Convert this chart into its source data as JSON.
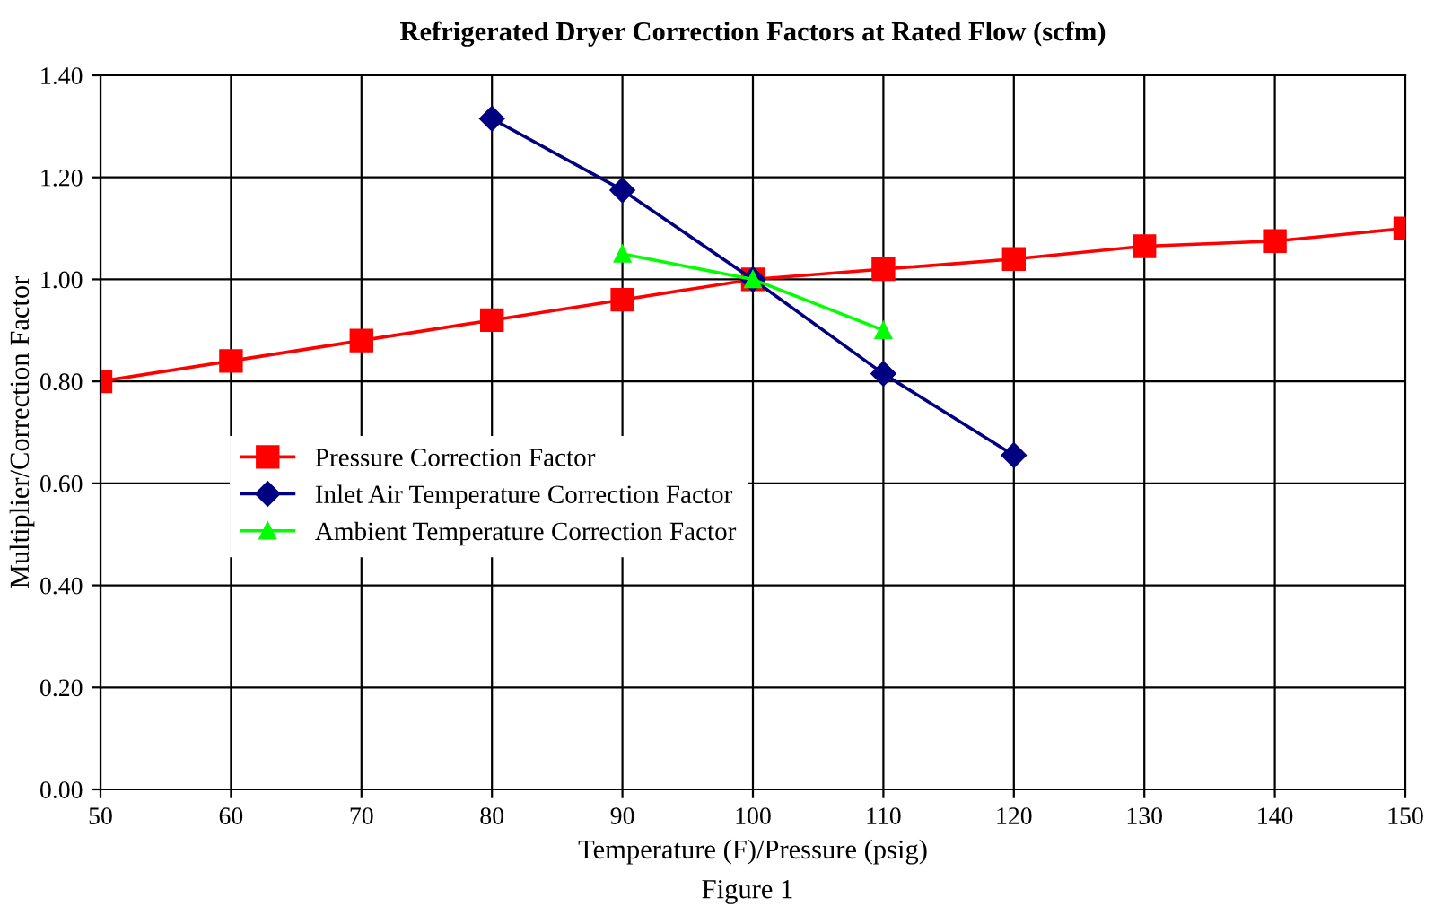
{
  "chart_data": {
    "type": "line",
    "title": "Refrigerated Dryer Correction Factors at Rated Flow (scfm)",
    "xlabel": "Temperature (F)/Pressure (psig)",
    "ylabel": "Multiplier/Correction Factor",
    "annotations": [
      "Figure 1"
    ],
    "series": [
      {
        "name": "Pressure Correction Factor",
        "color": "#ff0000",
        "marker": "square",
        "x": [
          50,
          60,
          70,
          80,
          90,
          100,
          110,
          120,
          130,
          140,
          150
        ],
        "values": [
          0.8,
          0.84,
          0.88,
          0.92,
          0.96,
          1.0,
          1.02,
          1.04,
          1.065,
          1.075,
          1.1
        ]
      },
      {
        "name": "Inlet Air Temperature Correction Factor",
        "color": "#000080",
        "marker": "diamond",
        "x": [
          80,
          90,
          100,
          110,
          120
        ],
        "values": [
          1.315,
          1.175,
          1.0,
          0.815,
          0.655
        ]
      },
      {
        "name": "Ambient Temperature Correction Factor",
        "color": "#00ff00",
        "marker": "triangle",
        "x": [
          90,
          100,
          110
        ],
        "values": [
          1.05,
          1.0,
          0.9
        ]
      }
    ],
    "xlim": [
      50,
      150
    ],
    "xticks": [
      50,
      60,
      70,
      80,
      90,
      100,
      110,
      120,
      130,
      140,
      150
    ],
    "ylim": [
      0,
      1.4
    ],
    "yticks": [
      {
        "value": 0,
        "label": "0.00"
      },
      {
        "value": 0.2,
        "label": "0.20"
      },
      {
        "value": 0.4,
        "label": "0.40"
      },
      {
        "value": 0.6,
        "label": "0.60"
      },
      {
        "value": 0.8,
        "label": "0.80"
      },
      {
        "value": 1.0,
        "label": "1.00"
      },
      {
        "value": 1.2,
        "label": "1.20"
      },
      {
        "value": 1.4,
        "label": "1.40"
      }
    ],
    "grid": true,
    "legend": "center left",
    "line_style": "solid"
  }
}
